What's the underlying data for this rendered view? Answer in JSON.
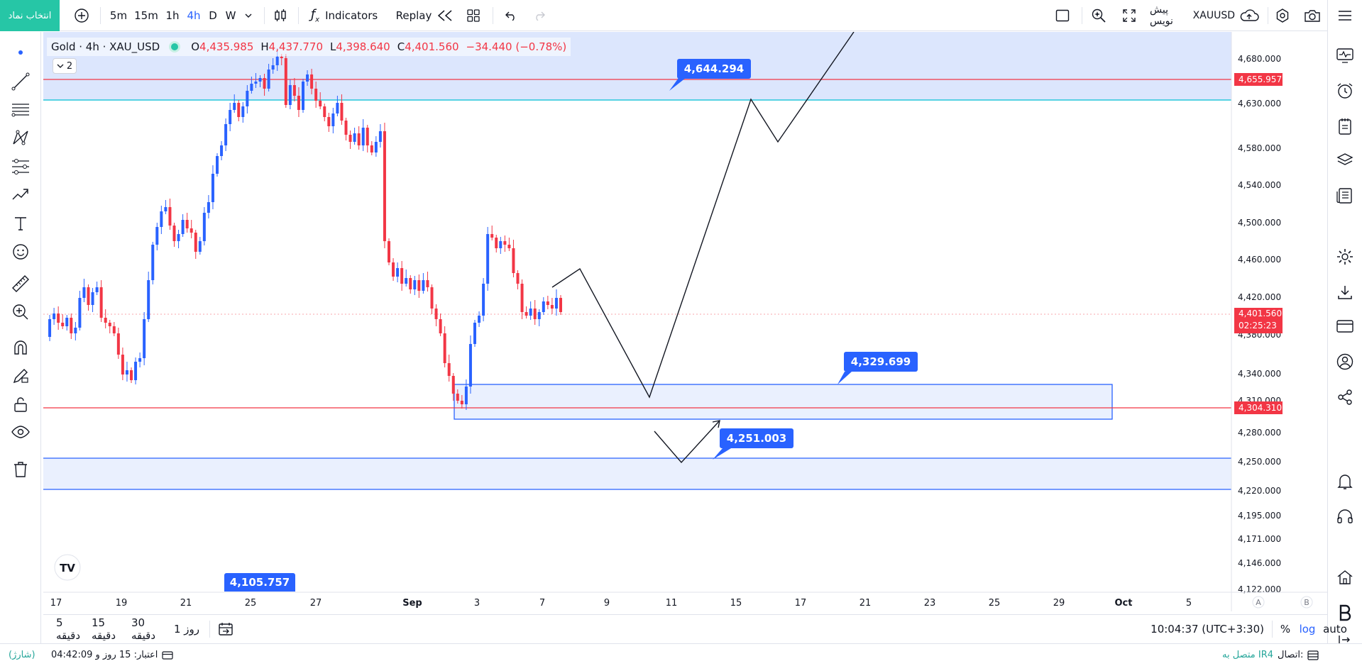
{
  "topbar": {
    "symbol_search": "انتخاب نماد",
    "timeframes": [
      "5m",
      "15m",
      "1h",
      "4h",
      "D",
      "W"
    ],
    "active_timeframe": "4h",
    "indicators": "Indicators",
    "replay": "Replay",
    "symbol": "XAUUSD",
    "draft_label": "پیش نویس"
  },
  "legend": {
    "title": "Gold · 4h · XAU_USD",
    "o_label": "O",
    "o": "4,435.985",
    "h_label": "H",
    "h": "4,437.770",
    "l_label": "L",
    "l": "4,398.640",
    "c_label": "C",
    "c": "4,401.560",
    "change": "−34.440 (−0.78%)",
    "indicator_count": "2"
  },
  "chart_data": {
    "type": "candlestick",
    "symbol": "XAU_USD",
    "interval": "4h",
    "y_ticks": [
      "4,680.000",
      "4,630.000",
      "4,580.000",
      "4,540.000",
      "4,500.000",
      "4,460.000",
      "4,420.000",
      "4,380.000",
      "4,340.000",
      "4,310.000",
      "4,280.000",
      "4,250.000",
      "4,220.000",
      "4,195.000",
      "4,171.000",
      "4,146.000",
      "4,122.000"
    ],
    "x_ticks": [
      "17",
      "19",
      "21",
      "25",
      "27",
      "Sep",
      "3",
      "7",
      "9",
      "11",
      "15",
      "17",
      "21",
      "23",
      "25",
      "29",
      "Oct",
      "5"
    ],
    "last_price": "4,401.560",
    "countdown": "02:25:23",
    "price_lines": [
      {
        "label": "4,655.957",
        "value": 4655.957,
        "color": "#f23645"
      },
      {
        "label": "4,304.310",
        "value": 4304.31,
        "color": "#f23645"
      }
    ],
    "callouts": [
      "4,644.294",
      "4,329.699",
      "4,251.003",
      "4,105.757"
    ],
    "scale_letters": [
      "A",
      "B"
    ]
  },
  "bottombar": {
    "ranges": [
      "5 دقیقه",
      "15 دقیقه",
      "30 دقیقه",
      "1 روز"
    ],
    "clock": "10:04:37 (UTC+3:30)",
    "percent": "%",
    "log": "log",
    "auto": "auto"
  },
  "statusbar": {
    "connection_label": "اتصال:",
    "connection_value": "متصل به IR4",
    "credit_label": "اعتبار: 15 روز و 04:42:09",
    "charge": "(شارژ)"
  },
  "colors": {
    "bull": "#2962ff",
    "bear": "#f23645",
    "accent": "#26c6a6",
    "zone_fill": "#dce6fd"
  }
}
